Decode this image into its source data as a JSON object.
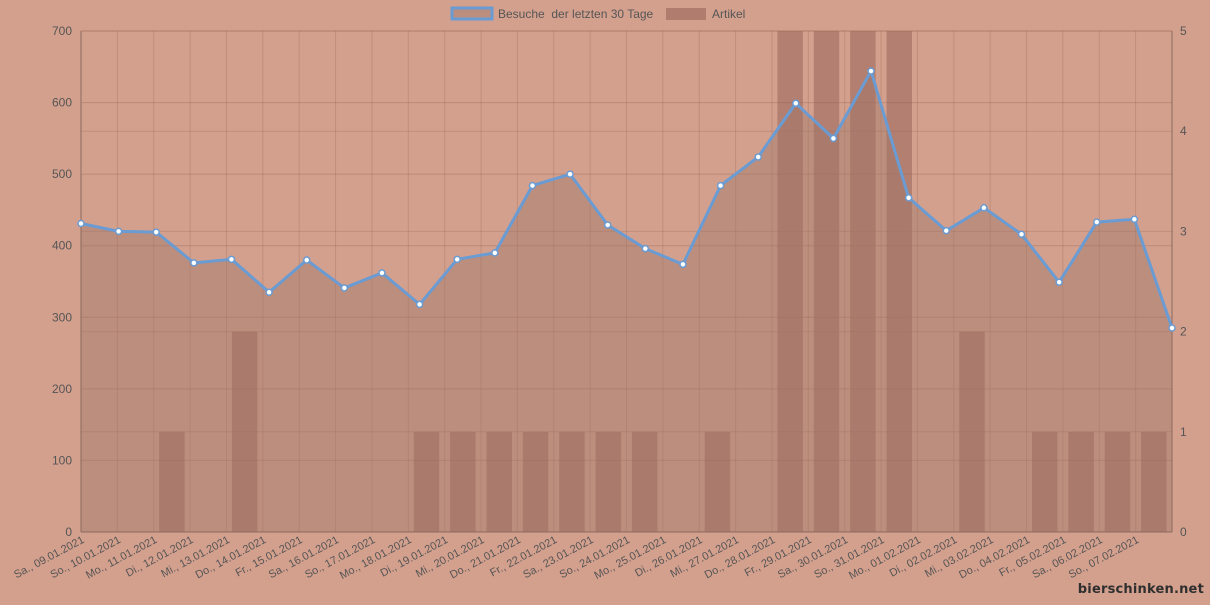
{
  "watermark": "bierschinken.net",
  "chart_data": {
    "type": "line",
    "legend_position": "top",
    "grid": true,
    "categories": [
      "Sa., 09.01.2021",
      "So., 10.01.2021",
      "Mo., 11.01.2021",
      "Di., 12.01.2021",
      "Mi., 13.01.2021",
      "Do., 14.01.2021",
      "Fr., 15.01.2021",
      "Sa., 16.01.2021",
      "So., 17.01.2021",
      "Mo., 18.01.2021",
      "Di., 19.01.2021",
      "Mi., 20.01.2021",
      "Do., 21.01.2021",
      "Fr., 22.01.2021",
      "Sa., 23.01.2021",
      "So., 24.01.2021",
      "Mo., 25.01.2021",
      "Di., 26.01.2021",
      "Mi., 27.01.2021",
      "Do., 28.01.2021",
      "Fr., 29.01.2021",
      "Sa., 30.01.2021",
      "So., 31.01.2021",
      "Mo., 01.02.2021",
      "Di., 02.02.2021",
      "Mi., 03.02.2021",
      "Do., 04.02.2021",
      "Fr., 05.02.2021",
      "Sa., 06.02.2021",
      "So., 07.02.2021"
    ],
    "y_left": {
      "min": 0,
      "max": 700,
      "ticks": [
        0,
        100,
        200,
        300,
        400,
        500,
        600,
        700
      ]
    },
    "y_right": {
      "min": 0,
      "max": 5,
      "ticks": [
        0,
        1,
        2,
        3,
        4,
        5
      ]
    },
    "series": [
      {
        "name": "Besuche  der letzten 30 Tage",
        "type": "area-line",
        "axis": "left",
        "color": "#6a9bd2",
        "values": [
          431,
          420,
          419,
          376,
          381,
          335,
          380,
          341,
          362,
          318,
          381,
          390,
          484,
          500,
          429,
          396,
          374,
          484,
          524,
          599,
          550,
          644,
          467,
          421,
          453,
          416,
          349,
          433,
          437,
          285
        ]
      },
      {
        "name": "Artikel",
        "type": "bar",
        "axis": "right",
        "color": "#a07568",
        "values": [
          0,
          0,
          1,
          0,
          2,
          0,
          0,
          0,
          0,
          1,
          1,
          1,
          1,
          1,
          1,
          1,
          0,
          1,
          0,
          5,
          5,
          5,
          5,
          0,
          2,
          0,
          1,
          1,
          1,
          1
        ]
      }
    ]
  }
}
